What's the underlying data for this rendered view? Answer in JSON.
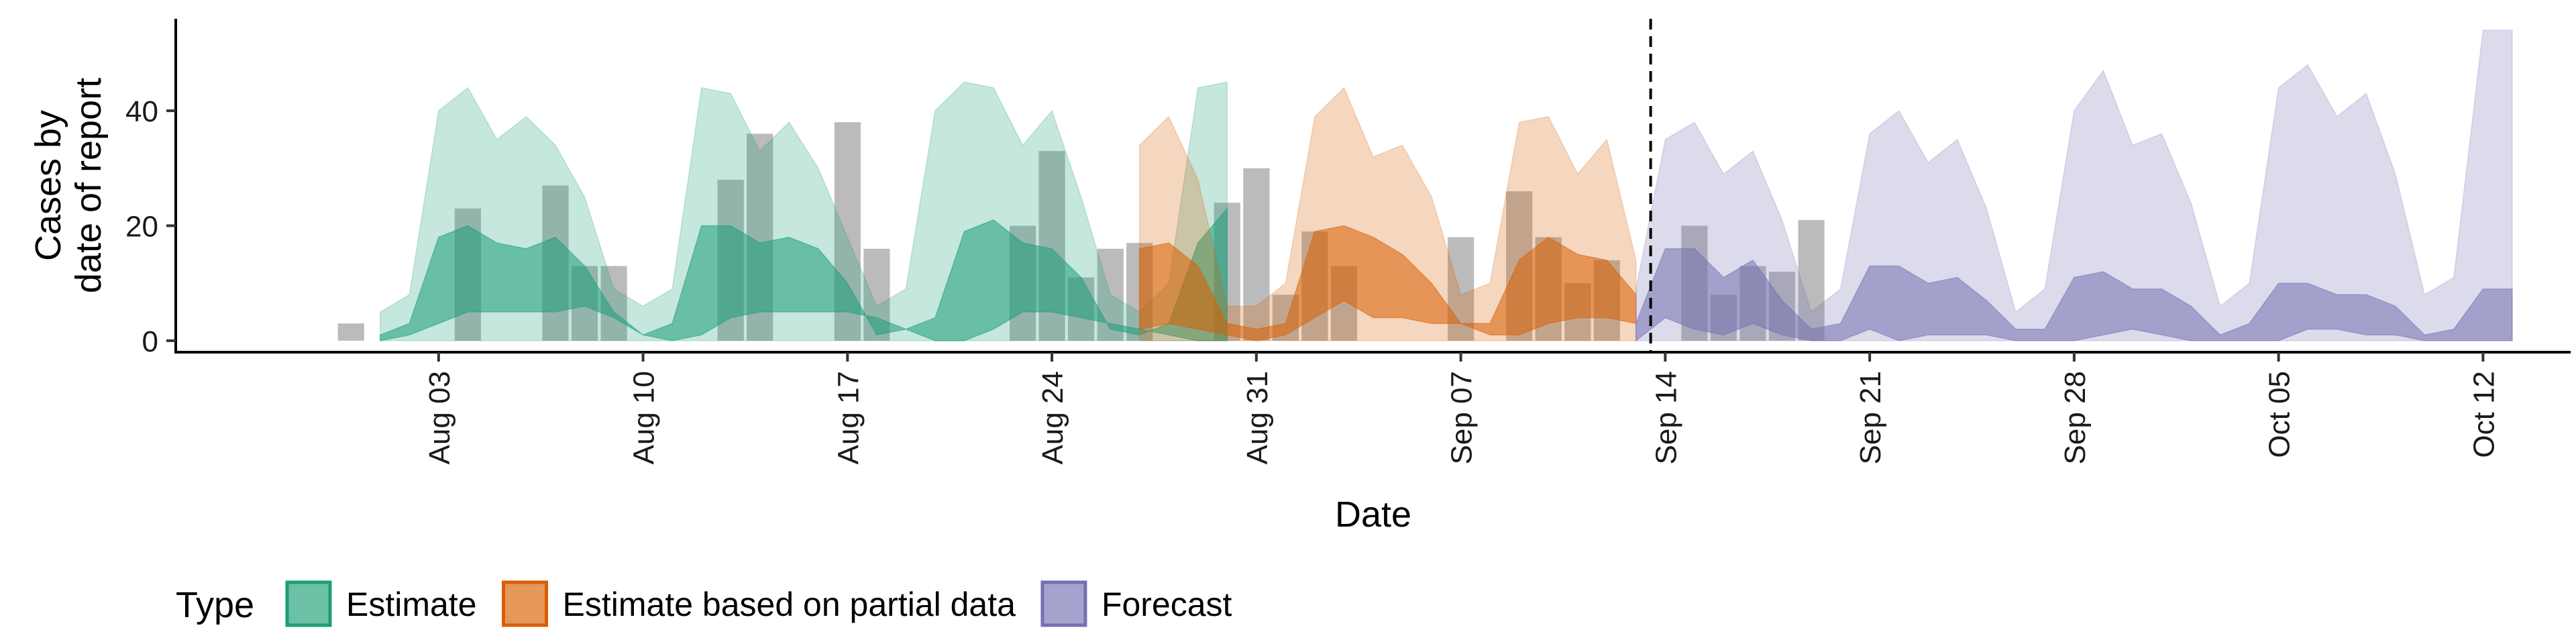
{
  "chart_data": {
    "type": "area",
    "xlabel": "Date",
    "ylabel_lines": [
      "Cases by",
      "date of report"
    ],
    "ylim": [
      -2,
      56
    ],
    "y_ticks": [
      0,
      20,
      40
    ],
    "x_ticks": [
      {
        "date": "2021-08-03",
        "label": "Aug 03"
      },
      {
        "date": "2021-08-10",
        "label": "Aug 10"
      },
      {
        "date": "2021-08-17",
        "label": "Aug 17"
      },
      {
        "date": "2021-08-24",
        "label": "Aug 24"
      },
      {
        "date": "2021-08-31",
        "label": "Aug 31"
      },
      {
        "date": "2021-09-07",
        "label": "Sep 07"
      },
      {
        "date": "2021-09-14",
        "label": "Sep 14"
      },
      {
        "date": "2021-09-21",
        "label": "Sep 21"
      },
      {
        "date": "2021-09-28",
        "label": "Sep 28"
      },
      {
        "date": "2021-10-05",
        "label": "Oct 05"
      },
      {
        "date": "2021-10-12",
        "label": "Oct 12"
      }
    ],
    "xlim": [
      "2021-07-25",
      "2021-10-15"
    ],
    "forecast_start": "2021-09-13",
    "legend": {
      "title": "Type",
      "position": "bottom",
      "entries": [
        {
          "label": "Estimate",
          "color": "#1b9e77"
        },
        {
          "label": "Estimate based on partial data",
          "color": "#d95f02"
        },
        {
          "label": "Forecast",
          "color": "#7570b3"
        }
      ]
    },
    "observed": {
      "color": "#9e9e9e",
      "start": "2021-07-31",
      "values": [
        3,
        0,
        0,
        0,
        23,
        0,
        0,
        27,
        13,
        13,
        0,
        0,
        0,
        28,
        36,
        0,
        0,
        38,
        16,
        0,
        0,
        0,
        0,
        20,
        33,
        11,
        16,
        17,
        0,
        0,
        24,
        30,
        8,
        19,
        13,
        0,
        0,
        0,
        18,
        0,
        26,
        18,
        10,
        14,
        0,
        0,
        20,
        8,
        13,
        12,
        21
      ]
    },
    "series": [
      {
        "name": "Estimate",
        "color": "#1b9e77",
        "start": "2021-08-01",
        "lower90": [
          0,
          0,
          0,
          0,
          0,
          0,
          0,
          0,
          0,
          0,
          0,
          0,
          0,
          0,
          0,
          0,
          0,
          0,
          0,
          0,
          0,
          0,
          0,
          0,
          0,
          0,
          0,
          0,
          0,
          0
        ],
        "lower50": [
          0,
          1,
          3,
          5,
          5,
          5,
          5,
          6,
          4,
          1,
          0,
          1,
          4,
          5,
          5,
          5,
          5,
          4,
          2,
          0,
          0,
          2,
          5,
          5,
          4,
          3,
          2,
          1,
          0,
          0
        ],
        "upper50": [
          1,
          3,
          18,
          20,
          17,
          16,
          18,
          13,
          5,
          1,
          3,
          20,
          20,
          17,
          18,
          16,
          10,
          1,
          2,
          4,
          19,
          21,
          17,
          16,
          11,
          2,
          1,
          3,
          17,
          23
        ],
        "upper90": [
          5,
          8,
          40,
          44,
          35,
          39,
          34,
          25,
          9,
          6,
          9,
          44,
          43,
          33,
          38,
          30,
          18,
          6,
          9,
          40,
          45,
          44,
          34,
          40,
          25,
          8,
          5,
          10,
          44,
          45
        ],
        "end": "2021-08-26"
      },
      {
        "name": "Estimate based on partial data",
        "color": "#d95f02",
        "start": "2021-08-27",
        "lower90": [
          0,
          0,
          0,
          0,
          0,
          0,
          0,
          0,
          0,
          0,
          0,
          0,
          0,
          0,
          0,
          0,
          0,
          0
        ],
        "lower50": [
          2,
          3,
          2,
          1,
          0,
          1,
          4,
          7,
          4,
          4,
          3,
          3,
          1,
          1,
          3,
          4,
          4,
          3
        ],
        "upper50": [
          16,
          17,
          13,
          3,
          2,
          3,
          19,
          20,
          18,
          15,
          10,
          3,
          3,
          14,
          18,
          15,
          14,
          8
        ],
        "upper90": [
          34,
          39,
          28,
          6,
          6,
          10,
          39,
          44,
          32,
          34,
          25,
          8,
          10,
          38,
          39,
          29,
          35,
          14
        ]
      },
      {
        "name": "Forecast",
        "color": "#7570b3",
        "start": "2021-09-13",
        "lower90": [
          0,
          0,
          0,
          0,
          0,
          0,
          0,
          0,
          0,
          0,
          0,
          0,
          0,
          0,
          0,
          0,
          0,
          0,
          0,
          0,
          0,
          0,
          0,
          0,
          0,
          0,
          0,
          0,
          0,
          0,
          0
        ],
        "lower50": [
          0,
          4,
          2,
          1,
          3,
          1,
          0,
          0,
          2,
          0,
          1,
          1,
          1,
          0,
          0,
          0,
          1,
          2,
          1,
          0,
          0,
          0,
          0,
          2,
          2,
          1,
          1,
          0,
          0,
          0,
          0
        ],
        "upper50": [
          3,
          16,
          16,
          11,
          14,
          7,
          2,
          3,
          13,
          13,
          10,
          11,
          7,
          2,
          2,
          11,
          12,
          9,
          9,
          6,
          1,
          3,
          10,
          10,
          8,
          8,
          6,
          1,
          2,
          9,
          9
        ],
        "upper90": [
          9,
          35,
          38,
          29,
          33,
          21,
          5,
          9,
          36,
          40,
          31,
          35,
          23,
          5,
          9,
          40,
          47,
          34,
          36,
          24,
          6,
          10,
          44,
          48,
          39,
          43,
          29,
          8,
          11,
          54,
          54
        ]
      }
    ]
  }
}
